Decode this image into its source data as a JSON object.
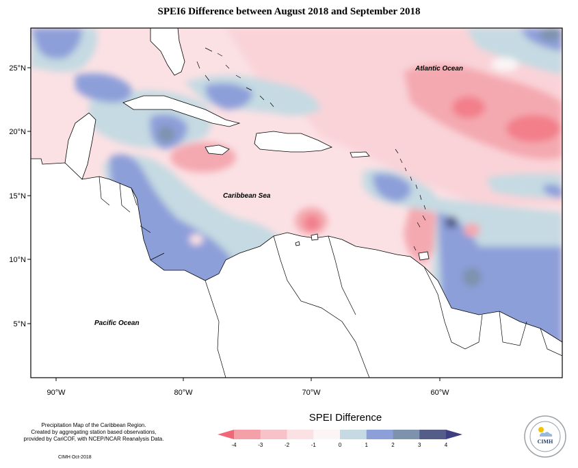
{
  "title": "SPEI6 Difference between August 2018 and September 2018",
  "map": {
    "labels": {
      "atlantic": "Atlantic Ocean",
      "caribbean": "Caribbean Sea",
      "pacific": "Pacific Ocean"
    },
    "lat_ticks": [
      "25°N",
      "20°N",
      "15°N",
      "10°N",
      "5°N"
    ],
    "lon_ticks": [
      "90°W",
      "80°W",
      "70°W",
      "60°W"
    ]
  },
  "legend": {
    "title": "SPEI Difference",
    "ticks": [
      "-4",
      "-3",
      "-2",
      "-1",
      "0",
      "1",
      "2",
      "3",
      "4"
    ],
    "colors": [
      "#f06878",
      "#f4a0a8",
      "#f7c3c9",
      "#fbe1e4",
      "#fbf5f6",
      "#c5dae2",
      "#8d9fd9",
      "#7d93ad",
      "#545c88",
      "#3d3f82"
    ]
  },
  "credits": {
    "line1": "Precipitation Map of the Caribbean Region.",
    "line2": "Created by aggregating station based observations,",
    "line3": "provided by CariCOF, with NCEP/NCAR Reanalysis Data."
  },
  "footer": "CIMH Oct-2018",
  "logo": {
    "text": "CIMH"
  }
}
